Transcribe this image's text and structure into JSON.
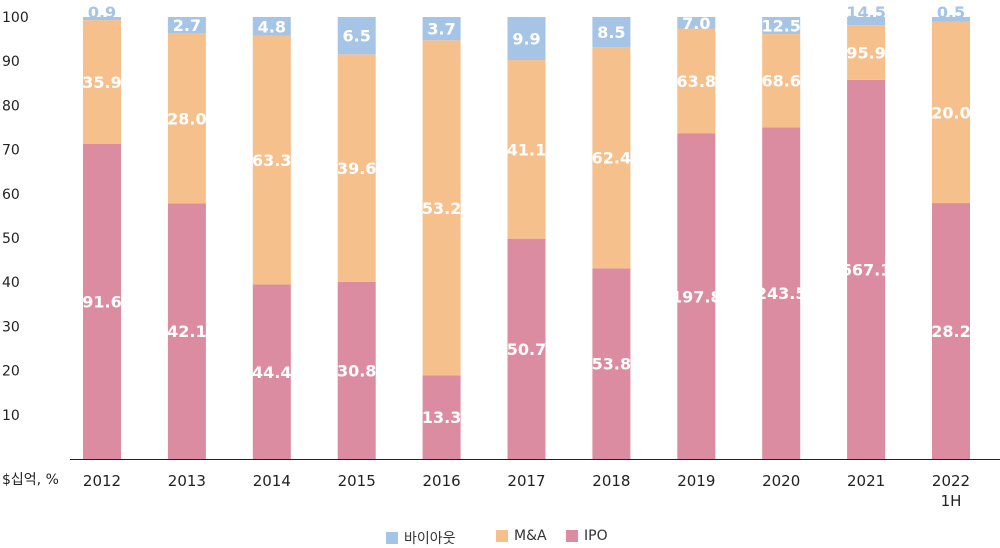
{
  "chart_data": {
    "type": "bar",
    "stacked": true,
    "normalized": true,
    "categories": [
      "2012",
      "2013",
      "2014",
      "2015",
      "2016",
      "2017",
      "2018",
      "2019",
      "2020",
      "2021",
      "2022\n1H"
    ],
    "series": [
      {
        "name": "IPO",
        "color": "#db8ca0",
        "label_values": [
          "91.6",
          "42.1",
          "44.4",
          "30.8",
          "13.3",
          "50.7",
          "53.8",
          "197.8",
          "243.5",
          "667.1",
          "28.2"
        ]
      },
      {
        "name": "M&A",
        "color": "#f6c08c",
        "label_values": [
          "35.9",
          "28.0",
          "63.3",
          "39.6",
          "53.2",
          "41.1",
          "62.4",
          "63.8",
          "68.6",
          "95.9",
          "20.0"
        ]
      },
      {
        "name": "바이아웃",
        "color": "#a6c4e6",
        "label_values": [
          "0.9",
          "2.7",
          "4.8",
          "6.5",
          "3.7",
          "9.9",
          "8.5",
          "7.0",
          "12.5",
          "14.5",
          "0.5"
        ]
      }
    ],
    "y_ticks": [
      "10",
      "20",
      "30",
      "40",
      "50",
      "60",
      "70",
      "80",
      "90",
      "100"
    ],
    "ylim": [
      0,
      100
    ],
    "unit_label": "$십억, %",
    "legend_order": [
      "바이아웃",
      "M&A",
      "IPO"
    ],
    "legend_position": "bottom"
  }
}
